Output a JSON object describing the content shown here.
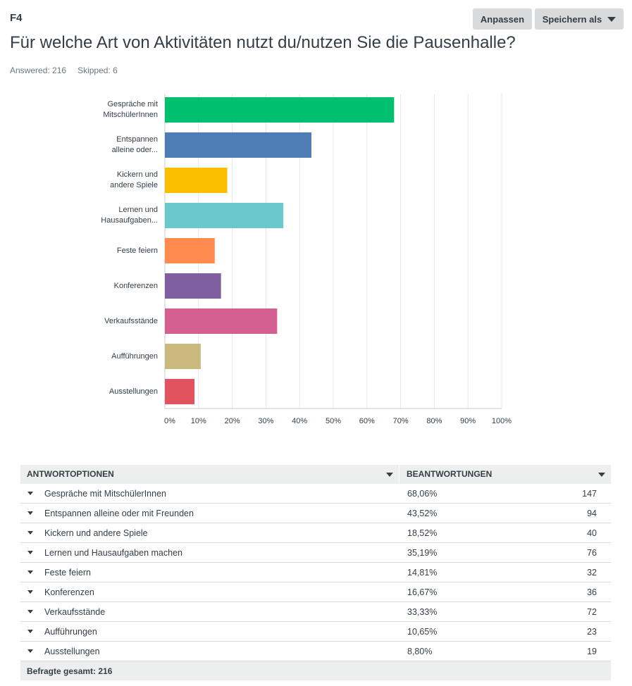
{
  "question": {
    "number": "F4",
    "title": "Für welche Art von Aktivitäten nutzt du/nutzen Sie die Pausenhalle?",
    "answered": "Answered: 216",
    "skipped": "Skipped: 6"
  },
  "toolbar": {
    "customize_label": "Anpassen",
    "save_label": "Speichern als"
  },
  "chart_data": {
    "type": "bar",
    "orientation": "horizontal",
    "categories": [
      [
        "Gespräche mit",
        "MitschülerInnen"
      ],
      [
        "Entspannen",
        "alleine oder..."
      ],
      [
        "Kickern und",
        "andere Spiele"
      ],
      [
        "Lernen und",
        "Hausaufgaben..."
      ],
      [
        "Feste feiern"
      ],
      [
        "Konferenzen"
      ],
      [
        "Verkaufsstände"
      ],
      [
        "Aufführungen"
      ],
      [
        "Ausstellungen"
      ]
    ],
    "values": [
      68.06,
      43.52,
      18.52,
      35.19,
      14.81,
      16.67,
      33.33,
      10.65,
      8.8
    ],
    "colors": [
      "#00bf6f",
      "#507cb6",
      "#f9be00",
      "#6bc8cd",
      "#ff8b4f",
      "#7f5fa0",
      "#d25f90",
      "#c9b97c",
      "#e0535f"
    ],
    "xlim": [
      0,
      100
    ],
    "ticks": [
      "0%",
      "10%",
      "20%",
      "30%",
      "40%",
      "50%",
      "60%",
      "70%",
      "80%",
      "90%",
      "100%"
    ],
    "tick_values": [
      0,
      10,
      20,
      30,
      40,
      50,
      60,
      70,
      80,
      90,
      100
    ],
    "gridlines": true
  },
  "table": {
    "headers": {
      "options": "ANTWORTOPTIONEN",
      "responses": "BEANTWORTUNGEN"
    },
    "rows": [
      {
        "option": "Gespräche mit MitschülerInnen",
        "percent": "68,06%",
        "count": "147"
      },
      {
        "option": "Entspannen alleine oder mit Freunden",
        "percent": "43,52%",
        "count": "94"
      },
      {
        "option": "Kickern und andere Spiele",
        "percent": "18,52%",
        "count": "40"
      },
      {
        "option": "Lernen und Hausaufgaben machen",
        "percent": "35,19%",
        "count": "76"
      },
      {
        "option": "Feste feiern",
        "percent": "14,81%",
        "count": "32"
      },
      {
        "option": "Konferenzen",
        "percent": "16,67%",
        "count": "36"
      },
      {
        "option": "Verkaufsstände",
        "percent": "33,33%",
        "count": "72"
      },
      {
        "option": "Aufführungen",
        "percent": "10,65%",
        "count": "23"
      },
      {
        "option": "Ausstellungen",
        "percent": "8,80%",
        "count": "19"
      }
    ],
    "total": "Befragte gesamt: 216"
  }
}
